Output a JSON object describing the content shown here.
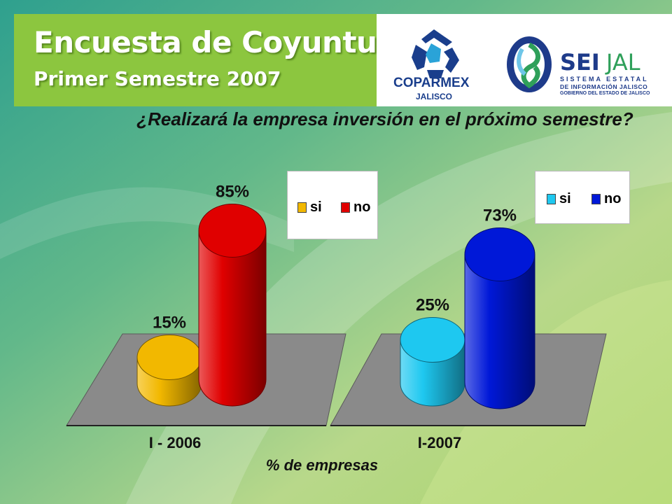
{
  "header": {
    "title": "Encuesta de Coyuntura",
    "subtitle": "Primer Semestre 2007"
  },
  "logos": {
    "coparmex": {
      "name": "COPARMEX",
      "sub": "JALISCO",
      "icon": "coparmex-logo-icon"
    },
    "seijal": {
      "name_a": "SEI",
      "name_b": "JAL",
      "line1": "SISTEMA ESTATAL",
      "line2": "DE INFORMACIÓN JALISCO",
      "line3": "GOBIERNO DEL ESTADO DE JALISCO",
      "icon": "seijal-logo-icon"
    }
  },
  "question": "¿Realizará la empresa inversión en el próximo semestre?",
  "xlabel": "% de empresas",
  "colors": {
    "si_2006": "#f2b800",
    "no_2006": "#e00000",
    "si_2007": "#1ec8f0",
    "no_2007": "#0018d8",
    "floor": "#8a8a8a",
    "header": "#8cc63f"
  },
  "chart_data": [
    {
      "type": "bar",
      "category_label": "I - 2006",
      "series": [
        {
          "name": "si",
          "value": 15,
          "label": "15%"
        },
        {
          "name": "no",
          "value": 85,
          "label": "85%"
        }
      ],
      "ylim": [
        0,
        100
      ]
    },
    {
      "type": "bar",
      "category_label": "I-2007",
      "series": [
        {
          "name": "si",
          "value": 25,
          "label": "25%"
        },
        {
          "name": "no",
          "value": 73,
          "label": "73%"
        }
      ],
      "ylim": [
        0,
        100
      ]
    }
  ]
}
